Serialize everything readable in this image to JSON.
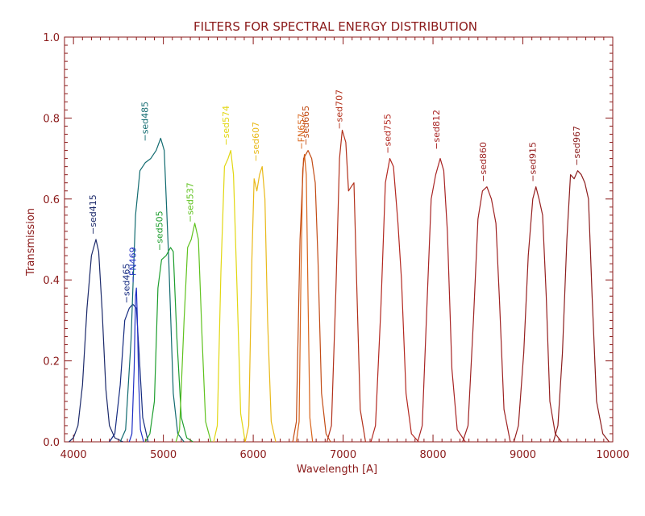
{
  "chart_data": {
    "type": "line",
    "title": "FILTERS FOR SPECTRAL ENERGY DISTRIBUTION",
    "xlabel": "Wavelength [A]",
    "ylabel": "Transmission",
    "xlim": [
      3900,
      10000
    ],
    "ylim": [
      0.0,
      1.0
    ],
    "x_ticks": [
      {
        "v": 4000,
        "label": "4000"
      },
      {
        "v": 5000,
        "label": "5000"
      },
      {
        "v": 6000,
        "label": "6000"
      },
      {
        "v": 7000,
        "label": "7000"
      },
      {
        "v": 8000,
        "label": "8000"
      },
      {
        "v": 9000,
        "label": "9000"
      },
      {
        "v": 10000,
        "label": "10000"
      }
    ],
    "y_ticks": [
      {
        "v": 0.0,
        "label": "0.0"
      },
      {
        "v": 0.2,
        "label": "0.2"
      },
      {
        "v": 0.4,
        "label": "0.4"
      },
      {
        "v": 0.6,
        "label": "0.6"
      },
      {
        "v": 0.8,
        "label": "0.8"
      },
      {
        "v": 1.0,
        "label": "1.0"
      }
    ],
    "grid": false,
    "axis_color": "#8b1a1a",
    "series": [
      {
        "name": "sed415",
        "color": "#1c2a6b",
        "label_at": [
          4250,
          0.5
        ],
        "points": [
          [
            3950,
            0.0
          ],
          [
            4000,
            0.01
          ],
          [
            4050,
            0.04
          ],
          [
            4100,
            0.14
          ],
          [
            4150,
            0.33
          ],
          [
            4200,
            0.46
          ],
          [
            4250,
            0.5
          ],
          [
            4280,
            0.47
          ],
          [
            4320,
            0.32
          ],
          [
            4360,
            0.13
          ],
          [
            4400,
            0.04
          ],
          [
            4460,
            0.01
          ],
          [
            4550,
            0.0
          ]
        ]
      },
      {
        "name": "sed465",
        "color": "#152b80",
        "label_at": [
          4620,
          0.33
        ],
        "points": [
          [
            4400,
            0.0
          ],
          [
            4460,
            0.02
          ],
          [
            4520,
            0.14
          ],
          [
            4570,
            0.3
          ],
          [
            4620,
            0.33
          ],
          [
            4660,
            0.34
          ],
          [
            4700,
            0.33
          ],
          [
            4730,
            0.22
          ],
          [
            4770,
            0.06
          ],
          [
            4830,
            0.0
          ]
        ]
      },
      {
        "name": "FN469",
        "color": "#1f2fc4",
        "label_at": [
          4695,
          0.38
        ],
        "points": [
          [
            4620,
            0.0
          ],
          [
            4650,
            0.02
          ],
          [
            4675,
            0.18
          ],
          [
            4690,
            0.36
          ],
          [
            4700,
            0.38
          ],
          [
            4710,
            0.31
          ],
          [
            4725,
            0.15
          ],
          [
            4745,
            0.03
          ],
          [
            4780,
            0.0
          ]
        ]
      },
      {
        "name": "sed485",
        "color": "#126b70",
        "label_at": [
          4830,
          0.73
        ],
        "points": [
          [
            4520,
            0.0
          ],
          [
            4580,
            0.03
          ],
          [
            4640,
            0.25
          ],
          [
            4690,
            0.56
          ],
          [
            4740,
            0.67
          ],
          [
            4800,
            0.69
          ],
          [
            4860,
            0.7
          ],
          [
            4920,
            0.72
          ],
          [
            4970,
            0.75
          ],
          [
            5010,
            0.72
          ],
          [
            5060,
            0.45
          ],
          [
            5110,
            0.12
          ],
          [
            5160,
            0.02
          ],
          [
            5230,
            0.0
          ]
        ]
      },
      {
        "name": "sed505",
        "color": "#1e9e2e",
        "label_at": [
          4990,
          0.46
        ],
        "points": [
          [
            4800,
            0.0
          ],
          [
            4850,
            0.02
          ],
          [
            4900,
            0.1
          ],
          [
            4940,
            0.38
          ],
          [
            4980,
            0.45
          ],
          [
            5030,
            0.46
          ],
          [
            5080,
            0.48
          ],
          [
            5110,
            0.47
          ],
          [
            5150,
            0.26
          ],
          [
            5200,
            0.06
          ],
          [
            5260,
            0.01
          ],
          [
            5330,
            0.0
          ]
        ]
      },
      {
        "name": "sed537",
        "color": "#5fc21e",
        "label_at": [
          5330,
          0.53
        ],
        "points": [
          [
            5140,
            0.0
          ],
          [
            5180,
            0.03
          ],
          [
            5230,
            0.3
          ],
          [
            5270,
            0.48
          ],
          [
            5310,
            0.5
          ],
          [
            5350,
            0.54
          ],
          [
            5390,
            0.5
          ],
          [
            5430,
            0.26
          ],
          [
            5470,
            0.05
          ],
          [
            5530,
            0.0
          ]
        ]
      },
      {
        "name": "sed574",
        "color": "#e2d711",
        "label_at": [
          5730,
          0.72
        ],
        "points": [
          [
            5560,
            0.0
          ],
          [
            5600,
            0.04
          ],
          [
            5640,
            0.42
          ],
          [
            5680,
            0.68
          ],
          [
            5720,
            0.7
          ],
          [
            5750,
            0.72
          ],
          [
            5780,
            0.66
          ],
          [
            5820,
            0.38
          ],
          [
            5860,
            0.07
          ],
          [
            5910,
            0.0
          ]
        ]
      },
      {
        "name": "sed607",
        "color": "#e9b918",
        "label_at": [
          6060,
          0.68
        ],
        "points": [
          [
            5910,
            0.0
          ],
          [
            5950,
            0.04
          ],
          [
            5985,
            0.45
          ],
          [
            6010,
            0.65
          ],
          [
            6040,
            0.62
          ],
          [
            6070,
            0.66
          ],
          [
            6100,
            0.68
          ],
          [
            6130,
            0.6
          ],
          [
            6160,
            0.3
          ],
          [
            6200,
            0.05
          ],
          [
            6250,
            0.0
          ]
        ]
      },
      {
        "name": "FN657",
        "color": "#d8641a",
        "label_at": [
          6570,
          0.71
        ],
        "points": [
          [
            6480,
            0.0
          ],
          [
            6510,
            0.05
          ],
          [
            6530,
            0.4
          ],
          [
            6550,
            0.67
          ],
          [
            6570,
            0.71
          ],
          [
            6590,
            0.66
          ],
          [
            6610,
            0.35
          ],
          [
            6630,
            0.06
          ],
          [
            6660,
            0.0
          ]
        ]
      },
      {
        "name": "sed665",
        "color": "#c24b14",
        "label_at": [
          6620,
          0.72
        ],
        "points": [
          [
            6440,
            0.0
          ],
          [
            6480,
            0.05
          ],
          [
            6520,
            0.5
          ],
          [
            6560,
            0.7
          ],
          [
            6610,
            0.72
          ],
          [
            6650,
            0.7
          ],
          [
            6690,
            0.64
          ],
          [
            6720,
            0.45
          ],
          [
            6760,
            0.12
          ],
          [
            6810,
            0.02
          ],
          [
            6860,
            0.0
          ]
        ]
      },
      {
        "name": "sed707",
        "color": "#b2301a",
        "label_at": [
          6990,
          0.76
        ],
        "points": [
          [
            6820,
            0.0
          ],
          [
            6870,
            0.04
          ],
          [
            6920,
            0.38
          ],
          [
            6960,
            0.7
          ],
          [
            6990,
            0.77
          ],
          [
            7030,
            0.74
          ],
          [
            7060,
            0.62
          ],
          [
            7090,
            0.63
          ],
          [
            7120,
            0.64
          ],
          [
            7150,
            0.4
          ],
          [
            7190,
            0.08
          ],
          [
            7250,
            0.0
          ]
        ]
      },
      {
        "name": "sed755",
        "color": "#b32820",
        "label_at": [
          7530,
          0.7
        ],
        "points": [
          [
            7310,
            0.0
          ],
          [
            7360,
            0.04
          ],
          [
            7420,
            0.33
          ],
          [
            7470,
            0.64
          ],
          [
            7520,
            0.7
          ],
          [
            7560,
            0.68
          ],
          [
            7610,
            0.54
          ],
          [
            7650,
            0.4
          ],
          [
            7700,
            0.12
          ],
          [
            7760,
            0.02
          ],
          [
            7840,
            0.0
          ]
        ]
      },
      {
        "name": "sed812",
        "color": "#a82424",
        "label_at": [
          8070,
          0.71
        ],
        "points": [
          [
            7830,
            0.0
          ],
          [
            7880,
            0.04
          ],
          [
            7930,
            0.32
          ],
          [
            7980,
            0.6
          ],
          [
            8030,
            0.66
          ],
          [
            8080,
            0.7
          ],
          [
            8120,
            0.67
          ],
          [
            8160,
            0.52
          ],
          [
            8210,
            0.18
          ],
          [
            8270,
            0.03
          ],
          [
            8360,
            0.0
          ]
        ]
      },
      {
        "name": "sed860",
        "color": "#9e2222",
        "label_at": [
          8590,
          0.63
        ],
        "points": [
          [
            8330,
            0.0
          ],
          [
            8390,
            0.04
          ],
          [
            8450,
            0.3
          ],
          [
            8500,
            0.55
          ],
          [
            8550,
            0.62
          ],
          [
            8600,
            0.63
          ],
          [
            8650,
            0.6
          ],
          [
            8700,
            0.54
          ],
          [
            8740,
            0.35
          ],
          [
            8790,
            0.08
          ],
          [
            8860,
            0.0
          ]
        ]
      },
      {
        "name": "sed915",
        "color": "#962020",
        "label_at": [
          9145,
          0.63
        ],
        "points": [
          [
            8900,
            0.0
          ],
          [
            8950,
            0.04
          ],
          [
            9010,
            0.22
          ],
          [
            9060,
            0.46
          ],
          [
            9110,
            0.6
          ],
          [
            9145,
            0.63
          ],
          [
            9180,
            0.6
          ],
          [
            9220,
            0.56
          ],
          [
            9260,
            0.36
          ],
          [
            9300,
            0.1
          ],
          [
            9360,
            0.02
          ],
          [
            9430,
            0.0
          ]
        ]
      },
      {
        "name": "sed967",
        "color": "#8c1e1e",
        "label_at": [
          9630,
          0.67
        ],
        "points": [
          [
            9340,
            0.0
          ],
          [
            9390,
            0.04
          ],
          [
            9440,
            0.22
          ],
          [
            9490,
            0.5
          ],
          [
            9530,
            0.66
          ],
          [
            9570,
            0.65
          ],
          [
            9610,
            0.67
          ],
          [
            9650,
            0.66
          ],
          [
            9690,
            0.64
          ],
          [
            9730,
            0.6
          ],
          [
            9770,
            0.36
          ],
          [
            9820,
            0.1
          ],
          [
            9890,
            0.02
          ],
          [
            9960,
            0.0
          ]
        ]
      }
    ]
  }
}
